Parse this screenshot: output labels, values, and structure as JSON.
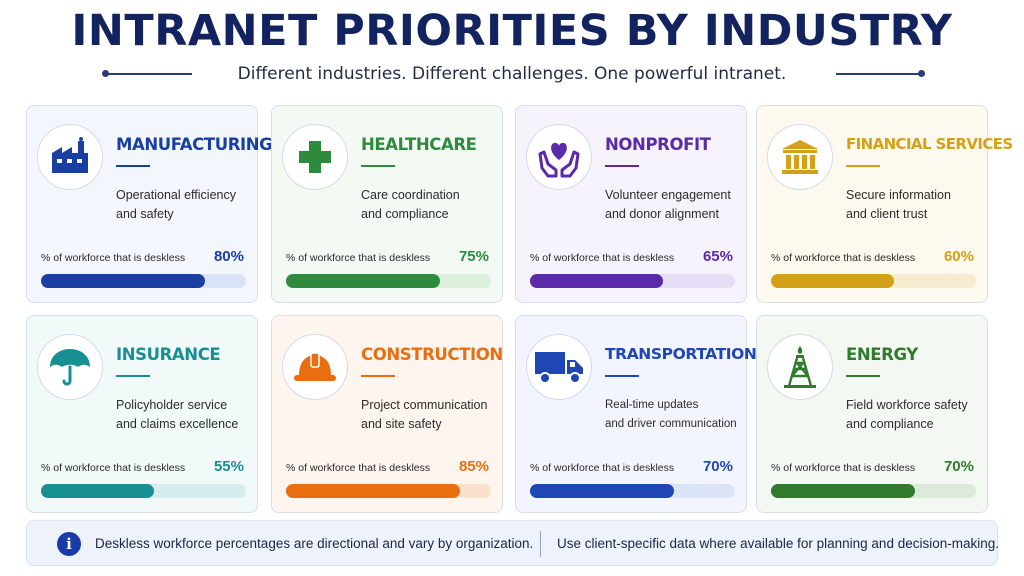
{
  "header": {
    "title": "INTRANET PRIORITIES BY INDUSTRY",
    "subtitle": "Different industries. Different challenges. One powerful intranet."
  },
  "cards": [
    {
      "title": "MANUFACTURING",
      "desc1": "Operational efficiency",
      "desc2": "and safety",
      "stat_label": "% of workforce that is deskless",
      "value_text": "80%",
      "value": 0.8,
      "color": "#1a3fa3",
      "icon": "factory-icon"
    },
    {
      "title": "HEALTHCARE",
      "desc1": "Care coordination",
      "desc2": "and compliance",
      "stat_label": "% of workforce that is deskless",
      "value_text": "75%",
      "value": 0.75,
      "color": "#2e8b3e",
      "icon": "medical-cross-icon"
    },
    {
      "title": "NONPROFIT",
      "desc1": "Volunteer engagement",
      "desc2": "and donor alignment",
      "stat_label": "% of workforce that is deskless",
      "value_text": "65%",
      "value": 0.65,
      "color": "#5a2aa8",
      "icon": "heart-hands-icon"
    },
    {
      "title": "FINANCIAL SERVICES",
      "desc1": "Secure information",
      "desc2": "and client trust",
      "stat_label": "% of workforce that is deskless",
      "value_text": "60%",
      "value": 0.6,
      "color": "#d4a017",
      "icon": "bank-icon"
    },
    {
      "title": "INSURANCE",
      "desc1": "Policyholder service",
      "desc2": "and claims excellence",
      "stat_label": "% of workforce that is deskless",
      "value_text": "55%",
      "value": 0.55,
      "color": "#178f93",
      "icon": "umbrella-icon"
    },
    {
      "title": "CONSTRUCTION",
      "desc1": "Project communication",
      "desc2": "and site safety",
      "stat_label": "% of workforce that is deskless",
      "value_text": "85%",
      "value": 0.85,
      "color": "#e86e10",
      "icon": "hard-hat-icon"
    },
    {
      "title": "TRANSPORTATION",
      "desc1": "Real-time updates",
      "desc2": "and driver communication",
      "stat_label": "% of workforce that is deskless",
      "value_text": "70%",
      "value": 0.7,
      "color": "#1e46b5",
      "icon": "truck-icon"
    },
    {
      "title": "ENERGY",
      "desc1": "Field workforce safety",
      "desc2": "and compliance",
      "stat_label": "% of workforce that is deskless",
      "value_text": "70%",
      "value": 0.7,
      "color": "#2f7a2c",
      "icon": "oil-rig-icon"
    }
  ],
  "footer": {
    "note_left": "Deskless workforce percentages are directional and vary by organization.",
    "note_right": "Use client-specific data where available for planning and decision-making."
  }
}
